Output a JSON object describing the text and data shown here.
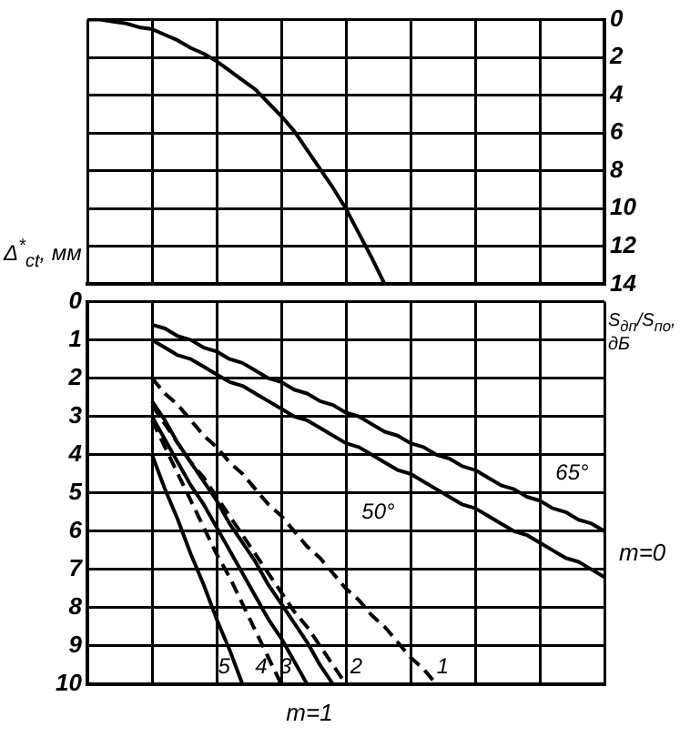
{
  "chart_data": [
    {
      "type": "line",
      "y2label": "S$_{дп}$/S$_{по}$, дБ",
      "categories": [
        null,
        null,
        null,
        null,
        null,
        null,
        null,
        null,
        null,
        null,
        null,
        null,
        null,
        null,
        null,
        null,
        null,
        null,
        null,
        null,
        null,
        null,
        null,
        null,
        null,
        null,
        null,
        null,
        null,
        null,
        null,
        null,
        null,
        null,
        null,
        null,
        null,
        null,
        null,
        null,
        null
      ],
      "ylim": [
        14,
        0
      ],
      "yticks": [
        0,
        2,
        4,
        6,
        8,
        10,
        12,
        14
      ],
      "tick_labels": "y",
      "grid": true,
      "legend": false,
      "series": [
        {
          "color": "#000000",
          "values": [
            0,
            0.0,
            0.1,
            0.2,
            0.4,
            0.5,
            0.8,
            1.1,
            1.5,
            1.8,
            2.2,
            2.7,
            3.2,
            3.7,
            4.4,
            5.1,
            5.9,
            6.9,
            7.9,
            8.9,
            10.0,
            11.3,
            12.6,
            14,
            null,
            null,
            null,
            null,
            null,
            null,
            null,
            null,
            null,
            null,
            null,
            null,
            null,
            null,
            null,
            null,
            null
          ]
        }
      ]
    },
    {
      "type": "line",
      "ylabel": "Δ$^{*}$$_{ct}$, мм",
      "categories": [
        null,
        null,
        null,
        null,
        null,
        null,
        null,
        null,
        null,
        null,
        null,
        null,
        null,
        null,
        null,
        null,
        null,
        null,
        null,
        null,
        null,
        null,
        null,
        null,
        null,
        null,
        null,
        null,
        null,
        null,
        null,
        null,
        null,
        null,
        null,
        null,
        null,
        null,
        null,
        null,
        null
      ],
      "ylim": [
        10,
        0
      ],
      "yticks": [
        0,
        1,
        2,
        3,
        4,
        5,
        6,
        7,
        8,
        9,
        10
      ],
      "tick_labels": "y",
      "grid": true,
      "legend": false,
      "annotations": [
        "m=0",
        "m=1"
      ],
      "series": [
        {
          "name": "65°",
          "color": "#000000",
          "line_style": "solid",
          "values": [
            null,
            null,
            null,
            null,
            null,
            0.6,
            0.7,
            0.9,
            1.0,
            1.2,
            1.3,
            1.5,
            1.6,
            1.8,
            2.0,
            2.1,
            2.3,
            2.4,
            2.6,
            2.7,
            2.9,
            3.0,
            3.2,
            3.4,
            3.5,
            3.7,
            3.8,
            4.0,
            4.1,
            4.3,
            4.4,
            4.6,
            4.8,
            4.9,
            5.1,
            5.2,
            5.4,
            5.5,
            5.7,
            5.8,
            6.0
          ]
        },
        {
          "name": "50°",
          "color": "#000000",
          "line_style": "solid",
          "values": [
            null,
            null,
            null,
            null,
            null,
            1.0,
            1.2,
            1.4,
            1.5,
            1.7,
            1.9,
            2.1,
            2.2,
            2.4,
            2.6,
            2.8,
            3.0,
            3.1,
            3.3,
            3.5,
            3.7,
            3.8,
            4.0,
            4.2,
            4.4,
            4.5,
            4.7,
            4.9,
            5.1,
            5.3,
            5.4,
            5.6,
            5.8,
            6.0,
            6.1,
            6.3,
            6.5,
            6.7,
            6.8,
            7.0,
            7.2
          ]
        },
        {
          "name": "1",
          "color": "#000000",
          "line_style": "dashed",
          "values": [
            null,
            null,
            null,
            null,
            null,
            2.0,
            2.4,
            2.7,
            3.1,
            3.5,
            3.8,
            4.2,
            4.5,
            4.9,
            5.3,
            5.6,
            6.0,
            6.4,
            6.7,
            7.1,
            7.5,
            7.8,
            8.2,
            8.5,
            8.9,
            9.3,
            9.6,
            10.0,
            null,
            null,
            null,
            null,
            null,
            null,
            null,
            null,
            null,
            null,
            null,
            null,
            null
          ]
        },
        {
          "name": "2",
          "color": "#000000",
          "line_style": "dashed",
          "values": [
            null,
            null,
            null,
            null,
            null,
            2.7,
            3.2,
            3.7,
            4.2,
            4.6,
            5.1,
            5.6,
            6.1,
            6.6,
            7.1,
            7.6,
            8.1,
            8.5,
            9.0,
            9.5,
            10.0,
            null,
            null,
            null,
            null,
            null,
            null,
            null,
            null,
            null,
            null,
            null,
            null,
            null,
            null,
            null,
            null,
            null,
            null,
            null,
            null
          ]
        },
        {
          "color": "#000000",
          "line_style": "solid",
          "values": [
            null,
            null,
            null,
            null,
            null,
            2.6,
            3.1,
            3.7,
            4.2,
            4.7,
            5.2,
            5.8,
            6.3,
            6.8,
            7.4,
            7.9,
            8.4,
            8.9,
            9.5,
            10.0,
            null,
            null,
            null,
            null,
            null,
            null,
            null,
            null,
            null,
            null,
            null,
            null,
            null,
            null,
            null,
            null,
            null,
            null,
            null,
            null,
            null
          ]
        },
        {
          "name": "3",
          "color": "#000000",
          "line_style": "solid",
          "values": [
            null,
            null,
            null,
            null,
            null,
            3.0,
            3.6,
            4.2,
            4.8,
            5.3,
            5.9,
            6.5,
            7.1,
            7.7,
            8.3,
            8.8,
            9.4,
            10.0,
            null,
            null,
            null,
            null,
            null,
            null,
            null,
            null,
            null,
            null,
            null,
            null,
            null,
            null,
            null,
            null,
            null,
            null,
            null,
            null,
            null,
            null,
            null
          ]
        },
        {
          "name": "4",
          "color": "#000000",
          "line_style": "dashed",
          "values": [
            null,
            null,
            null,
            null,
            null,
            3.1,
            3.8,
            4.5,
            5.2,
            5.9,
            6.6,
            7.2,
            7.9,
            8.6,
            9.3,
            10.0,
            null,
            null,
            null,
            null,
            null,
            null,
            null,
            null,
            null,
            null,
            null,
            null,
            null,
            null,
            null,
            null,
            null,
            null,
            null,
            null,
            null,
            null,
            null,
            null,
            null
          ]
        },
        {
          "name": "5",
          "color": "#000000",
          "line_style": "solid",
          "values": [
            null,
            null,
            null,
            null,
            null,
            4.0,
            4.9,
            5.7,
            6.6,
            7.4,
            8.3,
            9.1,
            10.0,
            null,
            null,
            null,
            null,
            null,
            null,
            null,
            null,
            null,
            null,
            null,
            null,
            null,
            null,
            null,
            null,
            null,
            null,
            null,
            null,
            null,
            null,
            null,
            null,
            null,
            null,
            null,
            null
          ]
        }
      ]
    }
  ]
}
